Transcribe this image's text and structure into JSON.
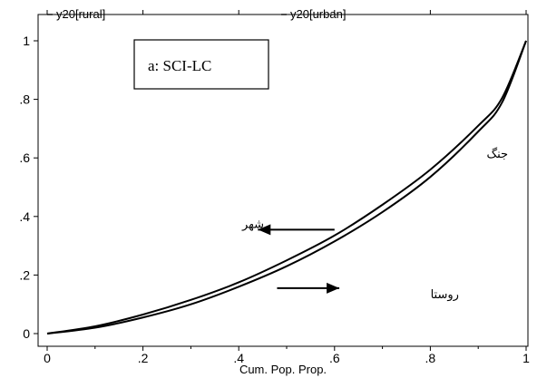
{
  "chart_data": {
    "type": "line",
    "title": "",
    "panel_label": "a: SCI-LC",
    "xlabel": "Cum. Pop. Prop.",
    "ylabel": "",
    "xlim": [
      0,
      1
    ],
    "ylim": [
      0,
      1
    ],
    "x_ticks": [
      {
        "value": 0,
        "label": "0"
      },
      {
        "value": 0.2,
        "label": ".2"
      },
      {
        "value": 0.4,
        "label": ".4"
      },
      {
        "value": 0.6,
        "label": ".6"
      },
      {
        "value": 0.8,
        "label": ".8"
      },
      {
        "value": 1,
        "label": "1"
      }
    ],
    "y_ticks": [
      {
        "value": 0,
        "label": "0"
      },
      {
        "value": 0.2,
        "label": ".2"
      },
      {
        "value": 0.4,
        "label": ".4"
      },
      {
        "value": 0.6,
        "label": ".6"
      },
      {
        "value": 0.8,
        "label": ".8"
      },
      {
        "value": 1,
        "label": "1"
      }
    ],
    "grid": false,
    "legend_position": "top",
    "series": [
      {
        "name": "y20[rural]",
        "x": [
          0,
          0.1,
          0.2,
          0.3,
          0.4,
          0.5,
          0.6,
          0.7,
          0.8,
          0.9,
          0.95,
          1
        ],
        "y": [
          0,
          0.02,
          0.055,
          0.1,
          0.16,
          0.23,
          0.315,
          0.415,
          0.535,
          0.69,
          0.79,
          1
        ]
      },
      {
        "name": "y20[urban]",
        "x": [
          0,
          0.1,
          0.2,
          0.3,
          0.4,
          0.5,
          0.6,
          0.7,
          0.8,
          0.9,
          0.95,
          1
        ],
        "y": [
          0,
          0.025,
          0.065,
          0.115,
          0.175,
          0.25,
          0.335,
          0.44,
          0.56,
          0.71,
          0.805,
          1
        ]
      }
    ],
    "annotations": [
      {
        "text": "شهر",
        "x": 0.43,
        "y": 0.36,
        "arrow": "left",
        "arrow_x": [
          0.6,
          0.44
        ],
        "arrow_y": 0.355
      },
      {
        "text": "روستا",
        "x": 0.83,
        "y": 0.12,
        "arrow": "right",
        "arrow_x": [
          0.48,
          0.61
        ],
        "arrow_y": 0.155
      },
      {
        "text": "جنگ",
        "x": 0.94,
        "y": 0.6
      }
    ]
  }
}
